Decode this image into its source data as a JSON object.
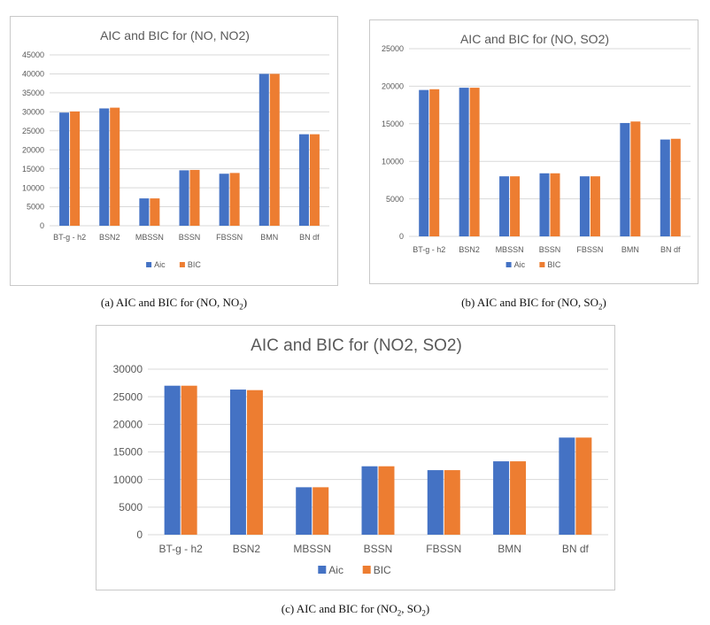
{
  "colors": {
    "aic": "#4472C4",
    "bic": "#ED7D31",
    "grid": "#D9D9D9",
    "text": "#595959"
  },
  "chart_data": [
    {
      "type": "bar",
      "title": "AIC and BIC for (NO, NO2)",
      "categories": [
        "BT-g - h2",
        "BSN2",
        "MBSSN",
        "BSSN",
        "FBSSN",
        "BMN",
        "BN df"
      ],
      "series": [
        {
          "name": "Aic",
          "values": [
            29800,
            30900,
            7200,
            14600,
            13700,
            40000,
            24100
          ]
        },
        {
          "name": "BIC",
          "values": [
            30100,
            31100,
            7200,
            14700,
            13900,
            40000,
            24100
          ]
        }
      ],
      "yticks": [
        "0",
        "5000",
        "10000",
        "15000",
        "20000",
        "25000",
        "30000",
        "35000",
        "40000",
        "45000"
      ],
      "ylim": [
        0,
        45000
      ],
      "xlabel": "",
      "ylabel": "",
      "legend": "bottom"
    },
    {
      "type": "bar",
      "title": "AIC and BIC for (NO, SO2)",
      "categories": [
        "BT-g - h2",
        "BSN2",
        "MBSSN",
        "BSSN",
        "FBSSN",
        "BMN",
        "BN df"
      ],
      "series": [
        {
          "name": "Aic",
          "values": [
            19500,
            19800,
            8000,
            8400,
            8000,
            15100,
            12900
          ]
        },
        {
          "name": "BIC",
          "values": [
            19600,
            19800,
            8000,
            8400,
            8000,
            15300,
            13000
          ]
        }
      ],
      "yticks": [
        "0",
        "5000",
        "10000",
        "15000",
        "20000",
        "25000"
      ],
      "ylim": [
        0,
        25000
      ],
      "xlabel": "",
      "ylabel": "",
      "legend": "bottom"
    },
    {
      "type": "bar",
      "title": "AIC and BIC for (NO2, SO2)",
      "categories": [
        "BT-g - h2",
        "BSN2",
        "MBSSN",
        "BSSN",
        "FBSSN",
        "BMN",
        "BN df"
      ],
      "series": [
        {
          "name": "Aic",
          "values": [
            27000,
            26300,
            8600,
            12400,
            11700,
            13300,
            17600
          ]
        },
        {
          "name": "BIC",
          "values": [
            27000,
            26200,
            8600,
            12400,
            11700,
            13300,
            17600
          ]
        }
      ],
      "yticks": [
        "0",
        "5000",
        "10000",
        "15000",
        "20000",
        "25000",
        "30000"
      ],
      "ylim": [
        0,
        30000
      ],
      "xlabel": "",
      "ylabel": "",
      "legend": "bottom"
    }
  ],
  "captions": {
    "a": {
      "prefix": "(a)  AIC and BIC for (NO, NO",
      "sub1": "2",
      "suffix": ")"
    },
    "b": {
      "prefix": "(b)  AIC and BIC for (NO, SO",
      "sub1": "2",
      "suffix": ")"
    },
    "c": {
      "prefix": "(c)  AIC and BIC for (NO",
      "sub1": "2",
      "mid": ", SO",
      "sub2": "2",
      "suffix": ")"
    }
  }
}
